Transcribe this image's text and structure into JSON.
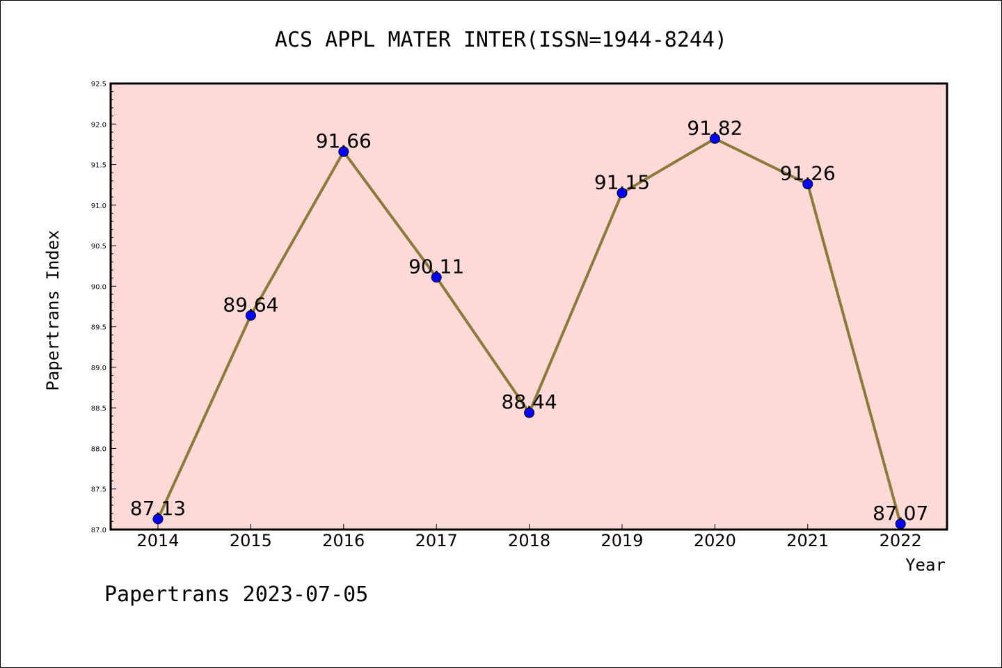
{
  "chart_data": {
    "type": "line",
    "title": "ACS APPL MATER INTER(ISSN=1944-8244)",
    "xlabel": "Year",
    "ylabel": "Papertrans Index",
    "categories": [
      "2014",
      "2015",
      "2016",
      "2017",
      "2018",
      "2019",
      "2020",
      "2021",
      "2022"
    ],
    "values": [
      87.13,
      89.64,
      91.66,
      90.11,
      88.44,
      91.15,
      91.82,
      91.26,
      87.07
    ],
    "data_labels": [
      "87.13",
      "89.64",
      "91.66",
      "90.11",
      "88.44",
      "91.15",
      "91.82",
      "91.26",
      "87.07"
    ],
    "ylim": [
      87.0,
      92.5
    ],
    "yticks": [
      "87.0",
      "87.5",
      "88.0",
      "88.5",
      "89.0",
      "89.5",
      "90.0",
      "90.5",
      "91.0",
      "91.5",
      "92.0",
      "92.5"
    ],
    "grid": false,
    "colors": {
      "plot_background": "#fddad8",
      "line": "#8b7a3a",
      "marker": "#0000ff"
    }
  },
  "footer": "Papertrans 2023-07-05"
}
